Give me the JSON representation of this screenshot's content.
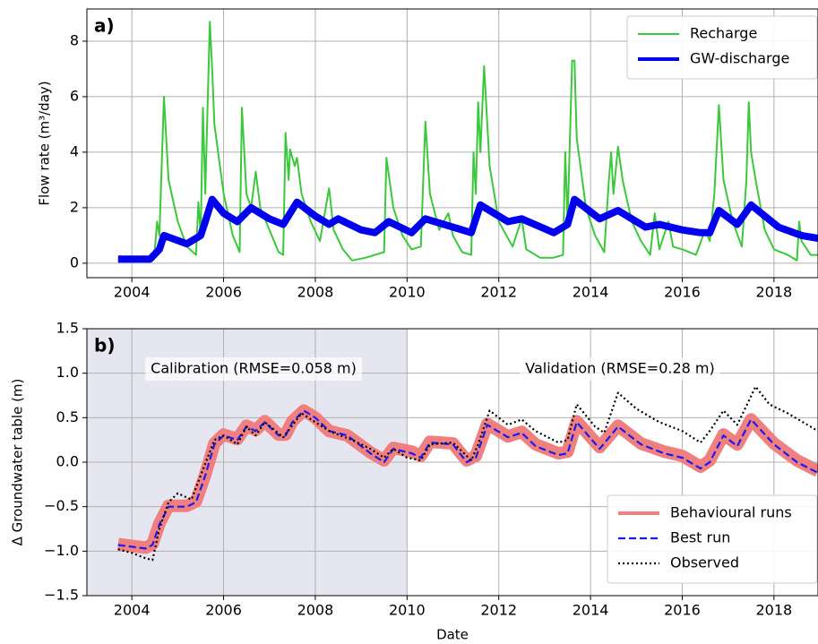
{
  "chart_data": [
    {
      "type": "line",
      "panel_label": "a)",
      "ylabel": "Flow rate (m³/day)",
      "xlim": [
        2003.02,
        2018.96
      ],
      "xticks": [
        2004,
        2006,
        2008,
        2010,
        2012,
        2014,
        2016,
        2018
      ],
      "ylim": [
        -0.52,
        9.16
      ],
      "yticks": [
        0,
        2,
        4,
        6,
        8
      ],
      "grid": true,
      "legend": "upper right",
      "series": [
        {
          "name": "Recharge",
          "color": "#3cc83c",
          "style": "solid",
          "x": [
            2003.7,
            2004.4,
            2004.5,
            2004.55,
            2004.6,
            2004.7,
            2004.8,
            2005.0,
            2005.2,
            2005.4,
            2005.45,
            2005.5,
            2005.55,
            2005.6,
            2005.7,
            2005.75,
            2005.8,
            2006.0,
            2006.2,
            2006.35,
            2006.4,
            2006.5,
            2006.6,
            2006.7,
            2006.8,
            2007.0,
            2007.2,
            2007.3,
            2007.35,
            2007.42,
            2007.45,
            2007.55,
            2007.6,
            2007.7,
            2007.9,
            2008.1,
            2008.3,
            2008.4,
            2008.6,
            2008.8,
            2009.1,
            2009.5,
            2009.55,
            2009.7,
            2009.9,
            2010.1,
            2010.3,
            2010.4,
            2010.5,
            2010.7,
            2010.9,
            2011.0,
            2011.2,
            2011.4,
            2011.45,
            2011.5,
            2011.55,
            2011.6,
            2011.68,
            2011.8,
            2012.0,
            2012.3,
            2012.5,
            2012.6,
            2012.9,
            2013.2,
            2013.4,
            2013.45,
            2013.5,
            2013.6,
            2013.65,
            2013.7,
            2013.9,
            2014.1,
            2014.3,
            2014.4,
            2014.45,
            2014.5,
            2014.6,
            2014.7,
            2014.9,
            2015.1,
            2015.3,
            2015.4,
            2015.5,
            2015.7,
            2015.8,
            2016.0,
            2016.3,
            2016.5,
            2016.6,
            2016.7,
            2016.8,
            2016.9,
            2017.1,
            2017.3,
            2017.4,
            2017.45,
            2017.5,
            2017.6,
            2017.8,
            2018.0,
            2018.3,
            2018.5,
            2018.55,
            2018.6,
            2018.8,
            2018.96
          ],
          "values": [
            0.05,
            0.05,
            0.5,
            1.5,
            1.0,
            6.0,
            3.0,
            1.5,
            0.6,
            0.3,
            2.2,
            1.0,
            5.6,
            2.5,
            8.7,
            7.0,
            5.0,
            2.5,
            1.0,
            0.4,
            5.6,
            2.5,
            2.0,
            3.3,
            2.0,
            1.2,
            0.4,
            0.3,
            4.7,
            3.0,
            4.1,
            3.5,
            3.8,
            2.5,
            1.5,
            0.8,
            2.7,
            1.2,
            0.5,
            0.1,
            0.2,
            0.4,
            3.8,
            2.0,
            1.0,
            0.5,
            0.6,
            5.1,
            2.5,
            1.2,
            1.8,
            1.0,
            0.4,
            0.3,
            4.0,
            2.5,
            5.8,
            4.0,
            7.1,
            3.5,
            1.5,
            0.6,
            1.6,
            0.5,
            0.2,
            0.2,
            0.3,
            4.0,
            1.5,
            7.3,
            7.3,
            4.5,
            2.0,
            1.0,
            0.4,
            3.0,
            4.0,
            2.5,
            4.2,
            3.0,
            1.5,
            0.8,
            0.3,
            1.8,
            0.5,
            1.5,
            0.6,
            0.5,
            0.3,
            1.2,
            0.8,
            2.5,
            5.7,
            3.0,
            1.5,
            0.6,
            3.0,
            5.8,
            4.0,
            3.0,
            1.2,
            0.5,
            0.3,
            0.1,
            1.5,
            0.8,
            0.3,
            0.3
          ]
        },
        {
          "name": "GW-discharge",
          "color": "#0000ee",
          "style": "thick",
          "x": [
            2003.7,
            2004.4,
            2004.6,
            2004.7,
            2005.2,
            2005.5,
            2005.6,
            2005.75,
            2006.0,
            2006.3,
            2006.6,
            2007.0,
            2007.3,
            2007.6,
            2008.0,
            2008.3,
            2008.5,
            2009.0,
            2009.3,
            2009.6,
            2010.1,
            2010.4,
            2011.0,
            2011.4,
            2011.6,
            2012.2,
            2012.5,
            2013.2,
            2013.5,
            2013.65,
            2014.2,
            2014.6,
            2015.2,
            2015.5,
            2016.0,
            2016.4,
            2016.6,
            2016.8,
            2017.2,
            2017.5,
            2018.1,
            2018.6,
            2018.96
          ],
          "values": [
            0.15,
            0.15,
            0.5,
            1.0,
            0.7,
            1.0,
            1.5,
            2.3,
            1.8,
            1.5,
            2.0,
            1.6,
            1.4,
            2.2,
            1.7,
            1.4,
            1.6,
            1.2,
            1.1,
            1.5,
            1.1,
            1.6,
            1.3,
            1.1,
            2.1,
            1.5,
            1.6,
            1.1,
            1.4,
            2.3,
            1.6,
            1.9,
            1.3,
            1.4,
            1.2,
            1.1,
            1.1,
            1.9,
            1.4,
            2.1,
            1.3,
            1.0,
            0.9
          ]
        }
      ]
    },
    {
      "type": "line",
      "panel_label": "b)",
      "ylabel": "Δ Groundwater table (m)",
      "xlabel": "Date",
      "xlim": [
        2003.02,
        2018.96
      ],
      "xticks": [
        2004,
        2006,
        2008,
        2010,
        2012,
        2014,
        2016,
        2018
      ],
      "ylim": [
        -1.5,
        1.5
      ],
      "yticks": [
        {
          "value": -1.5,
          "label": "−1.5"
        },
        {
          "value": -1,
          "label": "−1.0"
        },
        {
          "value": -0.5,
          "label": "−0.5"
        },
        {
          "value": 0,
          "label": "0.0"
        },
        0.5,
        {
          "value": 1,
          "label": "1.0"
        },
        1.5
      ],
      "grid": true,
      "legend": "lower right",
      "shade_to": 2010,
      "shade_color": "#e6e6f0",
      "annotations": [
        "Calibration (RMSE=0.058 m)",
        "Validation (RMSE=0.28 m)"
      ],
      "series": [
        {
          "name": "Behavioural runs",
          "color": "#f08080",
          "style": "band",
          "x": [
            2003.7,
            2004.3,
            2004.45,
            2004.6,
            2004.8,
            2005.2,
            2005.4,
            2005.6,
            2005.8,
            2006.0,
            2006.3,
            2006.5,
            2006.7,
            2006.9,
            2007.2,
            2007.35,
            2007.5,
            2007.75,
            2008.0,
            2008.3,
            2008.7,
            2009.2,
            2009.5,
            2009.7,
            2010.1,
            2010.3,
            2010.5,
            2011.0,
            2011.3,
            2011.5,
            2011.75,
            2012.2,
            2012.5,
            2012.8,
            2013.3,
            2013.5,
            2013.7,
            2014.2,
            2014.6,
            2015.1,
            2015.6,
            2016.0,
            2016.4,
            2016.6,
            2016.9,
            2017.2,
            2017.5,
            2018.0,
            2018.5,
            2018.96
          ],
          "values": [
            -0.92,
            -0.96,
            -0.92,
            -0.69,
            -0.49,
            -0.49,
            -0.44,
            -0.14,
            0.21,
            0.31,
            0.26,
            0.41,
            0.36,
            0.46,
            0.31,
            0.31,
            0.46,
            0.58,
            0.5,
            0.35,
            0.3,
            0.11,
            0.02,
            0.16,
            0.12,
            0.07,
            0.23,
            0.21,
            0.02,
            0.07,
            0.43,
            0.29,
            0.34,
            0.2,
            0.1,
            0.12,
            0.46,
            0.17,
            0.41,
            0.21,
            0.12,
            0.07,
            -0.05,
            0.02,
            0.31,
            0.2,
            0.48,
            0.21,
            0.02,
            -0.1
          ]
        },
        {
          "name": "Best run",
          "color": "#1a1aee",
          "style": "dashed",
          "x": [
            2003.7,
            2004.3,
            2004.45,
            2004.6,
            2004.8,
            2005.2,
            2005.4,
            2005.6,
            2005.8,
            2006.0,
            2006.3,
            2006.5,
            2006.7,
            2006.9,
            2007.2,
            2007.35,
            2007.5,
            2007.75,
            2008.0,
            2008.3,
            2008.7,
            2009.2,
            2009.5,
            2009.7,
            2010.1,
            2010.3,
            2010.5,
            2011.0,
            2011.3,
            2011.5,
            2011.75,
            2012.2,
            2012.5,
            2012.8,
            2013.3,
            2013.5,
            2013.7,
            2014.2,
            2014.6,
            2015.1,
            2015.6,
            2016.0,
            2016.4,
            2016.6,
            2016.9,
            2017.2,
            2017.5,
            2018.0,
            2018.5,
            2018.96
          ],
          "values": [
            -0.93,
            -0.97,
            -0.93,
            -0.7,
            -0.5,
            -0.5,
            -0.45,
            -0.15,
            0.2,
            0.3,
            0.25,
            0.4,
            0.35,
            0.45,
            0.3,
            0.3,
            0.45,
            0.58,
            0.5,
            0.35,
            0.3,
            0.1,
            0.0,
            0.15,
            0.1,
            0.05,
            0.22,
            0.2,
            0.0,
            0.05,
            0.42,
            0.28,
            0.33,
            0.18,
            0.08,
            0.1,
            0.45,
            0.15,
            0.4,
            0.2,
            0.1,
            0.05,
            -0.07,
            0.0,
            0.3,
            0.18,
            0.48,
            0.2,
            0.0,
            -0.12
          ]
        },
        {
          "name": "Observed",
          "color": "#000000",
          "style": "dotted",
          "x": [
            2003.7,
            2004.0,
            2004.3,
            2004.45,
            2004.6,
            2004.8,
            2005.0,
            2005.3,
            2005.5,
            2005.8,
            2006.0,
            2006.3,
            2006.5,
            2006.7,
            2006.9,
            2007.3,
            2007.7,
            2008.0,
            2008.3,
            2008.8,
            2009.2,
            2009.5,
            2009.7,
            2010.0,
            2010.3,
            2010.5,
            2011.0,
            2011.4,
            2011.55,
            2011.8,
            2012.2,
            2012.5,
            2012.8,
            2013.3,
            2013.5,
            2013.7,
            2014.1,
            2014.3,
            2014.6,
            2015.0,
            2015.5,
            2016.0,
            2016.4,
            2016.6,
            2016.9,
            2017.2,
            2017.6,
            2017.9,
            2018.3,
            2018.96
          ],
          "values": [
            -0.98,
            -1.02,
            -1.08,
            -1.1,
            -0.75,
            -0.45,
            -0.35,
            -0.42,
            -0.15,
            0.25,
            0.3,
            0.2,
            0.4,
            0.3,
            0.45,
            0.28,
            0.55,
            0.45,
            0.35,
            0.25,
            0.15,
            0.05,
            0.15,
            0.05,
            0.02,
            0.2,
            0.22,
            0.02,
            0.2,
            0.58,
            0.42,
            0.48,
            0.35,
            0.22,
            0.25,
            0.65,
            0.4,
            0.33,
            0.78,
            0.6,
            0.45,
            0.35,
            0.22,
            0.35,
            0.58,
            0.42,
            0.85,
            0.65,
            0.55,
            0.35
          ]
        }
      ]
    }
  ]
}
